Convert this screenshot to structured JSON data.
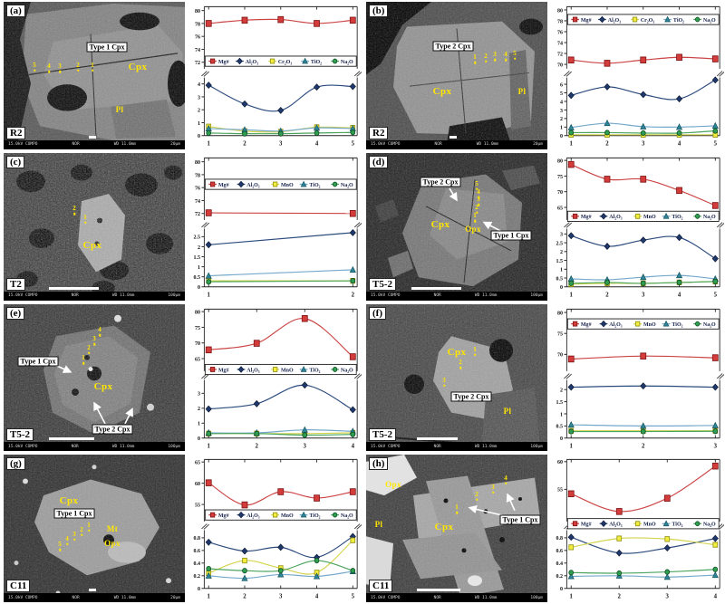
{
  "figure": {
    "panels": [
      {
        "id": "a",
        "letter": "(a)",
        "sample": "R2",
        "sem": {
          "labels": [
            {
              "text": "Type 1 Cpx",
              "kind": "boxed"
            },
            {
              "text": "Cpx",
              "kind": "mineral"
            },
            {
              "text": "Pl",
              "kind": "mineral"
            }
          ],
          "points": [
            "5",
            "4",
            "3",
            "2",
            "1"
          ],
          "meta": {
            "kv": "15.0kV COMPO",
            "mode": "NOR",
            "wd": "WD 11.0mm",
            "scale": "20μm"
          }
        }
      },
      {
        "id": "b",
        "letter": "(b)",
        "sample": "R2",
        "sem": {
          "labels": [
            {
              "text": "Type 2 Cpx",
              "kind": "boxed"
            },
            {
              "text": "Cpx",
              "kind": "mineral"
            },
            {
              "text": "Pl",
              "kind": "mineral"
            }
          ],
          "points": [
            "1",
            "2",
            "3",
            "4",
            "5"
          ],
          "meta": {
            "kv": "15.0kV COMPO",
            "mode": "NOR",
            "wd": "WD 11.0mm",
            "scale": "20μm"
          }
        }
      },
      {
        "id": "c",
        "letter": "(c)",
        "sample": "T2",
        "sem": {
          "labels": [
            {
              "text": "Cpx",
              "kind": "mineral"
            }
          ],
          "points": [
            "2",
            "1"
          ],
          "meta": {
            "kv": "15.0kV COMPO",
            "mode": "NOR",
            "wd": "WD 11.0mm",
            "scale": "100μm"
          }
        }
      },
      {
        "id": "d",
        "letter": "(d)",
        "sample": "T5-2",
        "sem": {
          "labels": [
            {
              "text": "Type 2 Cpx",
              "kind": "boxed"
            },
            {
              "text": "Cpx",
              "kind": "mineral"
            },
            {
              "text": "Opx",
              "kind": "mineral"
            },
            {
              "text": "Type 1 Cpx",
              "kind": "boxed"
            }
          ],
          "points": [
            "5",
            "4",
            "3",
            "2",
            "1"
          ],
          "meta": {
            "kv": "15.0kV COMPO",
            "mode": "NOR",
            "wd": "WD 11.0mm",
            "scale": "100μm"
          }
        }
      },
      {
        "id": "e",
        "letter": "(e)",
        "sample": "T5-2",
        "sem": {
          "labels": [
            {
              "text": "Type 1 Cpx",
              "kind": "boxed"
            },
            {
              "text": "Cpx",
              "kind": "mineral"
            },
            {
              "text": "Type 2 Cpx",
              "kind": "boxed"
            }
          ],
          "points": [
            "4",
            "3",
            "2",
            "1"
          ],
          "meta": {
            "kv": "15.0kV COMPO",
            "mode": "NOR",
            "wd": "WD 11.0mm",
            "scale": "100μm"
          }
        }
      },
      {
        "id": "f",
        "letter": "(f)",
        "sample": "T5-2",
        "sem": {
          "labels": [
            {
              "text": "Cpx",
              "kind": "mineral"
            },
            {
              "text": "Type 2 Cpx",
              "kind": "boxed"
            },
            {
              "text": "Pl",
              "kind": "mineral"
            }
          ],
          "points": [
            "1",
            "2",
            "3"
          ],
          "meta": {
            "kv": "15.0kV COMPO",
            "mode": "NOR",
            "wd": "WD 11.0mm",
            "scale": "100μm"
          }
        }
      },
      {
        "id": "g",
        "letter": "(g)",
        "sample": "C11",
        "sem": {
          "labels": [
            {
              "text": "Cpx",
              "kind": "mineral"
            },
            {
              "text": "Type 1 Cpx",
              "kind": "boxed"
            },
            {
              "text": "Mt",
              "kind": "mineral"
            },
            {
              "text": "Opx",
              "kind": "mineral"
            }
          ],
          "points": [
            "1",
            "2",
            "3",
            "4",
            "5"
          ],
          "meta": {
            "kv": "15.0kV COMPO",
            "mode": "NOR",
            "wd": "WD 11.0mm",
            "scale": "20μm"
          }
        }
      },
      {
        "id": "h",
        "letter": "(h)",
        "sample": "C11",
        "sem": {
          "labels": [
            {
              "text": "Opx",
              "kind": "mineral"
            },
            {
              "text": "Pl",
              "kind": "mineral"
            },
            {
              "text": "Cpx",
              "kind": "mineral"
            },
            {
              "text": "Type 1 Cpx",
              "kind": "boxed"
            }
          ],
          "points": [
            "1",
            "2",
            "3",
            "4"
          ],
          "meta": {
            "kv": "15.0kV COMPO",
            "mode": "NOR",
            "wd": "WD 11.0mm",
            "scale": "100μm"
          }
        }
      }
    ]
  },
  "series_colors": {
    "Mg#": {
      "line": "#cb4444",
      "fill": "#d43c3c",
      "edge": "#7c1414",
      "marker": "square"
    },
    "Al₂O₃": {
      "line": "#2a4a7c",
      "fill": "#20386b",
      "edge": "#0c1c38",
      "marker": "diamond"
    },
    "Cr₂O₃": {
      "line": "#d3d44e",
      "fill": "#f3ee3e",
      "edge": "#8f8f14",
      "marker": "square"
    },
    "MnO": {
      "line": "#d3d44e",
      "fill": "#f3ee3e",
      "edge": "#8f8f14",
      "marker": "square"
    },
    "TiO₂": {
      "line": "#74a8cb",
      "fill": "#2f8697",
      "edge": "#165361",
      "marker": "triangle"
    },
    "Na₂O": {
      "line": "#4aa45e",
      "fill": "#2f9e50",
      "edge": "#114f24",
      "marker": "circle"
    }
  },
  "chart_data": [
    {
      "panel": "a",
      "type": "line",
      "broken_y_axis": true,
      "x": [
        1,
        2,
        3,
        4,
        5
      ],
      "top_axis": {
        "ticks": [
          72,
          74,
          76,
          78,
          80
        ],
        "min": 71.0,
        "max": 80.6
      },
      "bottom_axis": {
        "ticks": [
          0,
          1,
          2,
          3,
          4
        ],
        "min": 0,
        "max": 4.5
      },
      "legend": [
        "Mg#",
        "Al₂O₃",
        "Cr₂O₃",
        "TiO₂",
        "Na₂O"
      ],
      "series": [
        {
          "name": "Mg#",
          "axis": "top",
          "values": [
            78.0,
            78.5,
            78.6,
            78.0,
            78.5
          ]
        },
        {
          "name": "Al₂O₃",
          "axis": "bottom",
          "values": [
            3.9,
            2.45,
            1.95,
            3.75,
            3.8
          ]
        },
        {
          "name": "Cr₂O₃",
          "axis": "bottom",
          "values": [
            0.7,
            0.35,
            0.3,
            0.65,
            0.6
          ]
        },
        {
          "name": "TiO₂",
          "axis": "bottom",
          "values": [
            0.55,
            0.45,
            0.35,
            0.6,
            0.55
          ]
        },
        {
          "name": "Na₂O",
          "axis": "bottom",
          "values": [
            0.2,
            0.15,
            0.15,
            0.2,
            0.25
          ]
        }
      ]
    },
    {
      "panel": "b",
      "type": "line",
      "broken_y_axis": true,
      "x": [
        1,
        2,
        3,
        4,
        5
      ],
      "top_axis": {
        "ticks": [
          70,
          72,
          74,
          76,
          78,
          80
        ],
        "min": 69.2,
        "max": 80.6
      },
      "bottom_axis": {
        "ticks": [
          0,
          1,
          2,
          3,
          4,
          5,
          6
        ],
        "min": 0,
        "max": 6.8
      },
      "legend": [
        "Mg#",
        "Al₂O₃",
        "Cr₂O₃",
        "TiO₂",
        "Na₂O"
      ],
      "series": [
        {
          "name": "Mg#",
          "axis": "top",
          "values": [
            70.8,
            70.2,
            70.8,
            71.3,
            71.0
          ]
        },
        {
          "name": "Al₂O₃",
          "axis": "bottom",
          "values": [
            4.7,
            5.7,
            4.8,
            4.3,
            6.5
          ]
        },
        {
          "name": "Cr₂O₃",
          "axis": "bottom",
          "values": [
            0.1,
            0.1,
            0.1,
            0.1,
            0.1
          ]
        },
        {
          "name": "TiO₂",
          "axis": "bottom",
          "values": [
            0.95,
            1.45,
            1.05,
            1.0,
            1.15
          ]
        },
        {
          "name": "Na₂O",
          "axis": "bottom",
          "values": [
            0.35,
            0.35,
            0.3,
            0.3,
            0.55
          ]
        }
      ]
    },
    {
      "panel": "c",
      "type": "line",
      "broken_y_axis": true,
      "x": [
        1,
        2
      ],
      "top_axis": {
        "ticks": [
          72,
          74,
          76,
          78,
          80
        ],
        "min": 71.0,
        "max": 80.6
      },
      "bottom_axis": {
        "ticks": [
          0,
          0.5,
          1,
          1.5,
          2,
          2.5
        ],
        "min": 0,
        "max": 2.9
      },
      "legend": [
        "Mg#",
        "Al₂O₃",
        "MnO",
        "TiO₂",
        "Na₂O"
      ],
      "series": [
        {
          "name": "Mg#",
          "axis": "top",
          "values": [
            72.1,
            72.0
          ]
        },
        {
          "name": "Al₂O₃",
          "axis": "bottom",
          "values": [
            2.1,
            2.7
          ]
        },
        {
          "name": "MnO",
          "axis": "bottom",
          "values": [
            0.3,
            0.3
          ]
        },
        {
          "name": "TiO₂",
          "axis": "bottom",
          "values": [
            0.55,
            0.85
          ]
        },
        {
          "name": "Na₂O",
          "axis": "bottom",
          "values": [
            0.25,
            0.3
          ]
        }
      ]
    },
    {
      "panel": "d",
      "type": "line",
      "broken_y_axis": true,
      "x": [
        1,
        2,
        3,
        4,
        5
      ],
      "top_axis": {
        "ticks": [
          65,
          70,
          75,
          80
        ],
        "min": 61.0,
        "max": 80.8
      },
      "bottom_axis": {
        "ticks": [
          0,
          0.5,
          1,
          1.5,
          2,
          2.5,
          3
        ],
        "min": 0,
        "max": 3.3
      },
      "legend": [
        "Mg#",
        "Al₂O₃",
        "MnO",
        "TiO₂",
        "Na₂O"
      ],
      "series": [
        {
          "name": "Mg#",
          "axis": "top",
          "values": [
            78.7,
            74.0,
            74.0,
            70.4,
            65.6
          ]
        },
        {
          "name": "Al₂O₃",
          "axis": "bottom",
          "values": [
            2.9,
            2.3,
            2.65,
            2.8,
            1.6
          ]
        },
        {
          "name": "MnO",
          "axis": "bottom",
          "values": [
            0.15,
            0.2,
            0.2,
            0.25,
            0.3
          ]
        },
        {
          "name": "TiO₂",
          "axis": "bottom",
          "values": [
            0.45,
            0.4,
            0.55,
            0.65,
            0.45
          ]
        },
        {
          "name": "Na₂O",
          "axis": "bottom",
          "values": [
            0.2,
            0.25,
            0.2,
            0.25,
            0.3
          ]
        }
      ]
    },
    {
      "panel": "e",
      "type": "line",
      "broken_y_axis": true,
      "x": [
        1,
        2,
        3,
        4
      ],
      "top_axis": {
        "ticks": [
          65,
          70,
          75,
          80
        ],
        "min": 61.0,
        "max": 80.8
      },
      "bottom_axis": {
        "ticks": [
          0,
          1,
          2,
          3
        ],
        "min": 0,
        "max": 3.9
      },
      "legend": [
        "Mg#",
        "Al₂O₃",
        "MnO",
        "TiO₂",
        "Na₂O"
      ],
      "series": [
        {
          "name": "Mg#",
          "axis": "top",
          "values": [
            67.8,
            69.9,
            77.8,
            65.6
          ]
        },
        {
          "name": "Al₂O₃",
          "axis": "bottom",
          "values": [
            1.95,
            2.3,
            3.55,
            1.9
          ]
        },
        {
          "name": "MnO",
          "axis": "bottom",
          "values": [
            0.3,
            0.3,
            0.3,
            0.35
          ]
        },
        {
          "name": "TiO₂",
          "axis": "bottom",
          "values": [
            0.35,
            0.35,
            0.55,
            0.45
          ]
        },
        {
          "name": "Na₂O",
          "axis": "bottom",
          "values": [
            0.3,
            0.3,
            0.2,
            0.25
          ]
        }
      ]
    },
    {
      "panel": "f",
      "type": "line",
      "broken_y_axis": true,
      "x": [
        1,
        2,
        3
      ],
      "top_axis": {
        "ticks": [
          70,
          75,
          80
        ],
        "min": 66.0,
        "max": 80.8
      },
      "bottom_axis": {
        "ticks": [
          0,
          0.5,
          1,
          1.5,
          2
        ],
        "min": 0,
        "max": 2.4
      },
      "legend": [
        "Mg#",
        "Al₂O₃",
        "MnO",
        "TiO₂",
        "Na₂O"
      ],
      "series": [
        {
          "name": "Mg#",
          "axis": "top",
          "values": [
            68.9,
            69.6,
            69.2
          ]
        },
        {
          "name": "Al₂O₃",
          "axis": "bottom",
          "values": [
            2.1,
            2.15,
            2.1
          ]
        },
        {
          "name": "MnO",
          "axis": "bottom",
          "values": [
            0.3,
            0.3,
            0.3
          ]
        },
        {
          "name": "TiO₂",
          "axis": "bottom",
          "values": [
            0.55,
            0.5,
            0.52
          ]
        },
        {
          "name": "Na₂O",
          "axis": "bottom",
          "values": [
            0.27,
            0.27,
            0.28
          ]
        }
      ]
    },
    {
      "panel": "g",
      "type": "line",
      "broken_y_axis": true,
      "x": [
        1,
        2,
        3,
        4,
        5
      ],
      "top_axis": {
        "ticks": [
          55,
          60,
          65
        ],
        "min": 51.0,
        "max": 65.6
      },
      "bottom_axis": {
        "ticks": [
          0,
          0.2,
          0.4,
          0.6,
          0.8
        ],
        "min": 0,
        "max": 0.92
      },
      "legend": [
        "Mg#",
        "Al₂O₃",
        "MnO",
        "TiO₂",
        "Na₂O"
      ],
      "series": [
        {
          "name": "Mg#",
          "axis": "top",
          "values": [
            60.1,
            54.9,
            58.0,
            56.5,
            58.0
          ]
        },
        {
          "name": "Al₂O₃",
          "axis": "bottom",
          "values": [
            0.73,
            0.59,
            0.65,
            0.49,
            0.82
          ]
        },
        {
          "name": "MnO",
          "axis": "bottom",
          "values": [
            0.24,
            0.44,
            0.32,
            0.25,
            0.76
          ]
        },
        {
          "name": "TiO₂",
          "axis": "bottom",
          "values": [
            0.2,
            0.16,
            0.22,
            0.19,
            0.27
          ]
        },
        {
          "name": "Na₂O",
          "axis": "bottom",
          "values": [
            0.31,
            0.28,
            0.28,
            0.44,
            0.28
          ]
        }
      ]
    },
    {
      "panel": "h",
      "type": "line",
      "broken_y_axis": true,
      "x": [
        1,
        2,
        3,
        4
      ],
      "top_axis": {
        "ticks": [
          55,
          60
        ],
        "min": 49.2,
        "max": 60.4
      },
      "bottom_axis": {
        "ticks": [
          0,
          0.2,
          0.4,
          0.6,
          0.8
        ],
        "min": 0,
        "max": 0.92
      },
      "legend": [
        "Mg#",
        "Al₂O₃",
        "MnO",
        "TiO₂",
        "Na₂O"
      ],
      "series": [
        {
          "name": "Mg#",
          "axis": "top",
          "values": [
            54.2,
            51.0,
            53.4,
            59.2
          ]
        },
        {
          "name": "Al₂O₃",
          "axis": "bottom",
          "values": [
            0.81,
            0.56,
            0.64,
            0.79
          ]
        },
        {
          "name": "MnO",
          "axis": "bottom",
          "values": [
            0.65,
            0.79,
            0.78,
            0.69
          ]
        },
        {
          "name": "TiO₂",
          "axis": "bottom",
          "values": [
            0.19,
            0.2,
            0.18,
            0.21
          ]
        },
        {
          "name": "Na₂O",
          "axis": "bottom",
          "values": [
            0.25,
            0.24,
            0.26,
            0.3
          ]
        }
      ]
    }
  ]
}
